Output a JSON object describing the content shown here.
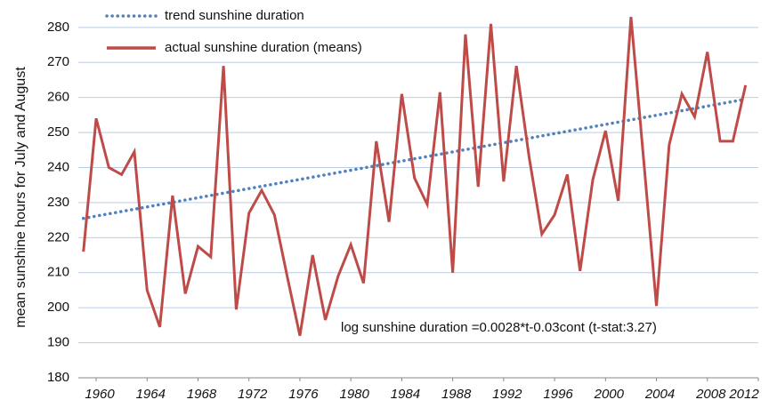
{
  "chart_data": {
    "type": "line",
    "y_label": "mean sunshine hours for July and August",
    "annotation": "log sunshine duration =0.0028*t-0.03cont (t-stat:3.27)",
    "legend": "top-left",
    "grid": true,
    "xlim": [
      1958.6,
      2012
    ],
    "xticks": [
      1960,
      1964,
      1968,
      1972,
      1976,
      1980,
      1984,
      1988,
      1992,
      1996,
      2000,
      2004,
      2008,
      2012
    ],
    "ylim": [
      180,
      283
    ],
    "yticks": [
      180,
      190,
      200,
      210,
      220,
      230,
      240,
      250,
      260,
      270,
      280
    ],
    "series": [
      {
        "name": "trend sunshine duration",
        "color": "#4f81bd",
        "style": "dotted",
        "x": [
          1959,
          2011
        ],
        "values": [
          225.5,
          259.5
        ]
      },
      {
        "name": "actual sunshine duration (means)",
        "color": "#be4b48",
        "style": "solid",
        "x": [
          1959,
          1960,
          1961,
          1962,
          1963,
          1964,
          1965,
          1966,
          1967,
          1968,
          1969,
          1970,
          1971,
          1972,
          1973,
          1974,
          1975,
          1976,
          1977,
          1978,
          1979,
          1980,
          1981,
          1982,
          1983,
          1984,
          1985,
          1986,
          1987,
          1988,
          1989,
          1990,
          1991,
          1992,
          1993,
          1994,
          1995,
          1996,
          1997,
          1998,
          1999,
          2000,
          2001,
          2002,
          2003,
          2004,
          2005,
          2006,
          2007,
          2008,
          2009,
          2010,
          2011
        ],
        "values": [
          216,
          254,
          240,
          238,
          244.5,
          205,
          194.5,
          232,
          204,
          217.5,
          214.5,
          269,
          199.5,
          227,
          233.5,
          226.5,
          209,
          192,
          215,
          196.5,
          209,
          218,
          207,
          247.5,
          224.5,
          261,
          237,
          229.5,
          261.5,
          210,
          278,
          234.5,
          281,
          236,
          269,
          243,
          221,
          226.5,
          238,
          210.5,
          236.5,
          250.5,
          230.5,
          283,
          242,
          200.5,
          246.5,
          261,
          254.5,
          273,
          247.5,
          247.5,
          263.5
        ]
      }
    ]
  }
}
